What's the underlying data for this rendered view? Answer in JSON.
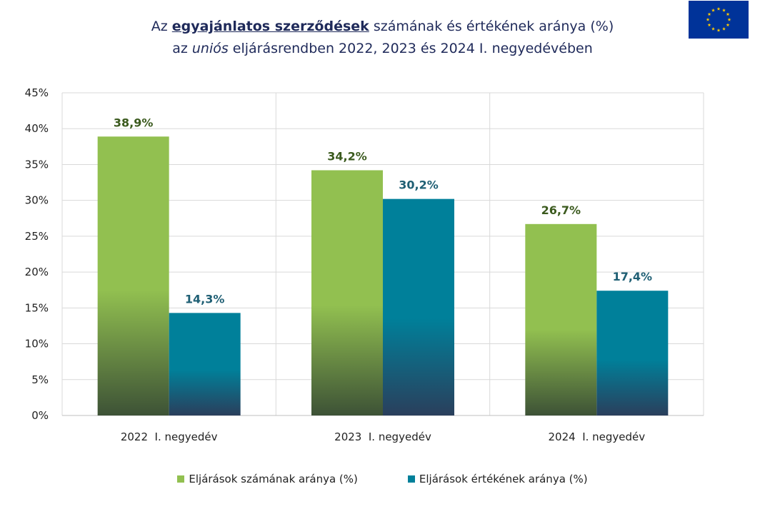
{
  "title": {
    "line1_pre": "Az ",
    "line1_em": "egyajánlatos szerződések",
    "line1_post": " számának és értékének aránya (%)",
    "line2_pre": "az ",
    "line2_it": "uniós",
    "line2_post": " eljárásrendben 2022, 2023 és 2024 I. negyedévében"
  },
  "flag": {
    "icon": "eu-flag-icon",
    "background": "#003399",
    "stars": "#ffcc00"
  },
  "colors": {
    "green": "#92c050",
    "teal": "#00809a",
    "green_label": "#3b5a1e",
    "teal_label": "#1f5f74"
  },
  "chart_data": {
    "type": "bar",
    "categories": [
      "2022  I. negyedév",
      "2023  I. negyedév",
      "2024  I. negyedév"
    ],
    "series": [
      {
        "name": "Eljárások számának aránya (%)",
        "values": [
          38.9,
          34.2,
          26.7
        ],
        "labels": [
          "38,9%",
          "34,2%",
          "26,7%"
        ]
      },
      {
        "name": "Eljárások értékének aránya (%)",
        "values": [
          14.3,
          30.2,
          17.4
        ],
        "labels": [
          "14,3%",
          "30,2%",
          "17,4%"
        ]
      }
    ],
    "ylim": [
      0,
      45
    ],
    "yticks": [
      0,
      5,
      10,
      15,
      20,
      25,
      30,
      35,
      40,
      45
    ],
    "ytick_labels": [
      "0%",
      "5%",
      "10%",
      "15%",
      "20%",
      "25%",
      "30%",
      "35%",
      "40%",
      "45%"
    ],
    "grid": true,
    "legend": "bottom"
  }
}
